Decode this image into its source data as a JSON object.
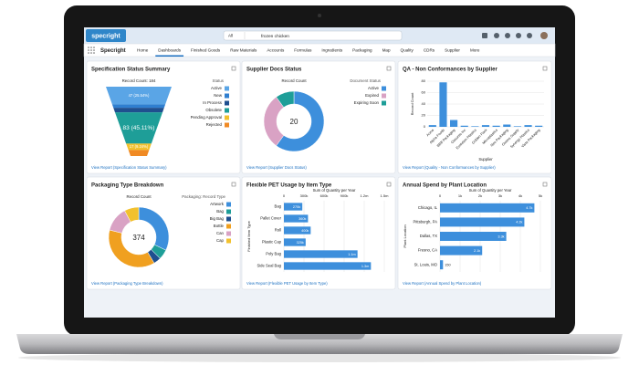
{
  "header": {
    "logo": "specright",
    "search_scope": "All",
    "search_query": "frozen chicken"
  },
  "nav": {
    "app_name": "Specright",
    "tabs": [
      "Home",
      "Dashboards",
      "Finished Goods",
      "Raw Materials",
      "Accounts",
      "Formulas",
      "Ingredients",
      "Packaging",
      "Map",
      "Quality",
      "CDRs",
      "Supplier",
      "More"
    ],
    "active_tab": 1
  },
  "panels": [
    {
      "type": "funnel",
      "title": "Specification Status Summary",
      "subtitle": "Record Count: 184",
      "legend_title": "Status",
      "categories": [
        "Active",
        "New",
        "In Process",
        "Obsolete",
        "Pending Approval",
        "Rejected"
      ],
      "values": [
        47,
        9,
        12,
        83,
        17,
        16
      ],
      "value_labels": [
        "47 (25.54%)",
        null,
        null,
        "83 (45.11%)",
        "17 (9.24%)",
        null
      ],
      "colors": [
        "#5aa5e6",
        "#2f7fd0",
        "#1f4f8f",
        "#1e9e98",
        "#f2c12e",
        "#f08a24"
      ],
      "footer": "View Report (Specification Status Summary)"
    },
    {
      "type": "donut",
      "title": "Supplier Docs Status",
      "subtitle": "Record Count",
      "legend_title": "Document Status",
      "categories": [
        "Active",
        "Expired",
        "Expiring Soon"
      ],
      "values": [
        12,
        6,
        2
      ],
      "total": 20,
      "colors": [
        "#3d8fdc",
        "#d9a2c4",
        "#1e9e98"
      ],
      "footer": "View Report (Supplier Docs Status)"
    },
    {
      "type": "column",
      "title": "QA - Non Conformances by Supplier",
      "ylabel": "Record Count",
      "xlabel": "Supplier",
      "categories": [
        "Acme",
        "Alpha Foods",
        "BBB Packaging",
        "Closures Inc",
        "Evolution Plastics",
        "Golden Pack",
        "Microplastics",
        "Neo Packaging",
        "Owens Supply",
        "Synergy Plastics",
        "Vista Packaging"
      ],
      "values": [
        3,
        78,
        12,
        2,
        1,
        3,
        2,
        4,
        1,
        3,
        2
      ],
      "color": "#3d8fdc",
      "ylim": [
        0,
        80
      ],
      "yticks": [
        0,
        20,
        40,
        60,
        80
      ],
      "footer": "View Report (Quality - Non Conformances by Supplier)"
    },
    {
      "type": "donut",
      "title": "Packaging Type Breakdown",
      "subtitle": "Record Count",
      "legend_title": "Packaging: Record Type",
      "categories": [
        "Artwork",
        "Bag",
        "Big Bag",
        "Bottle",
        "Can",
        "Cap"
      ],
      "values": [
        120,
        20,
        15,
        140,
        50,
        29
      ],
      "total": 374,
      "colors": [
        "#3d8fdc",
        "#1e9e98",
        "#1f4f8f",
        "#f0a020",
        "#d9a2c4",
        "#f2c12e"
      ],
      "footer": "View Report (Packaging Type Breakdown)"
    },
    {
      "type": "hbar",
      "title": "Flexible PET Usage by Item Type",
      "xlabel": "Sum of Quantity per Year",
      "ylabel": "Finished Item Type",
      "categories": [
        "Bag",
        "Pallet Cover",
        "Roll",
        "Plastic Cap",
        "Poly Bag",
        "Side Seal Bag"
      ],
      "values": [
        275000,
        360000,
        400000,
        325000,
        1100000,
        1300000
      ],
      "value_labels": [
        "275k",
        "360k",
        "400k",
        "325k",
        "1.1m",
        "1.3m"
      ],
      "color": "#3d8fdc",
      "xlim": [
        0,
        1500000
      ],
      "xticks": [
        0,
        {
          "value": 300000,
          "label": "300k"
        },
        {
          "value": 600000,
          "label": "600k"
        },
        {
          "value": 900000,
          "label": "900k"
        },
        {
          "value": 1200000,
          "label": "1.2m"
        },
        {
          "value": 1500000,
          "label": "1.5m"
        }
      ],
      "footer": "View Report (Flexible PET Usage by Item Type)"
    },
    {
      "type": "hbar",
      "title": "Annual Spend by Plant Location",
      "xlabel": "Sum of Quantity per Year",
      "ylabel": "Plant Location",
      "categories": [
        "Chicago, IL",
        "Pittsburgh, PA",
        "Dallas, TX",
        "Fresno, CA",
        "St. Louis, MO"
      ],
      "values": [
        4700,
        4200,
        3300,
        2100,
        150
      ],
      "value_labels": [
        "4.7k",
        "4.2k",
        "3.3k",
        "2.1k",
        "150"
      ],
      "color": "#3d8fdc",
      "xlim": [
        0,
        5000
      ],
      "xticks": [
        0,
        {
          "value": 1000,
          "label": "1k"
        },
        {
          "value": 2000,
          "label": "2k"
        },
        {
          "value": 3000,
          "label": "3k"
        },
        {
          "value": 4000,
          "label": "4k"
        },
        {
          "value": 5000,
          "label": "5k"
        }
      ],
      "footer": "View Report (Annual Spend by Plant Location)"
    }
  ]
}
